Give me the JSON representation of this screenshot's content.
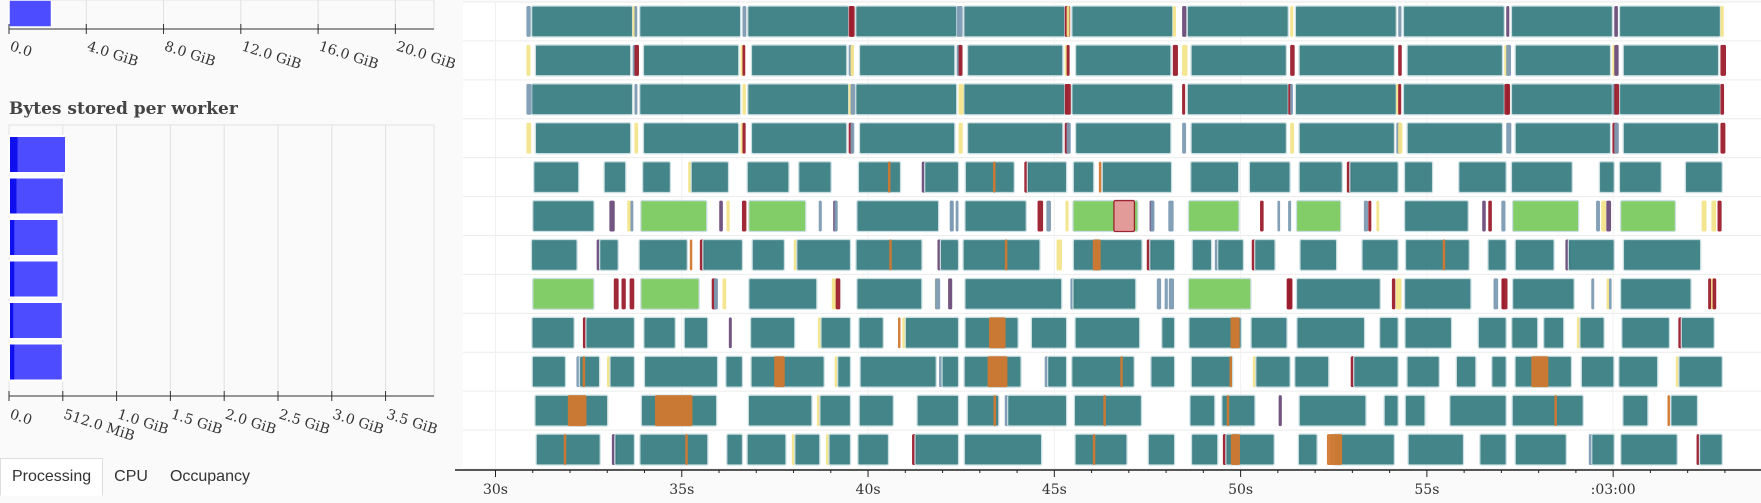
{
  "chart_data": [
    {
      "id": "bytes-top",
      "type": "bar",
      "orientation": "horizontal",
      "title": "",
      "xticks": [
        "0.0",
        "4.0 GiB",
        "8.0 GiB",
        "12.0 GiB",
        "16.0 GiB",
        "20.0 GiB"
      ],
      "xlim": [
        0,
        22
      ],
      "units": "GiB",
      "values": [
        2.2
      ],
      "colors": {
        "bar": "#4d4dff",
        "bar_dark": "#1010ee"
      }
    },
    {
      "id": "bytes-stored-per-worker",
      "type": "bar",
      "orientation": "horizontal",
      "title": "Bytes stored per worker",
      "xticks": [
        "0.0",
        "512.0 MiB",
        "1.0 GiB",
        "1.5 GiB",
        "2.0 GiB",
        "2.5 GiB",
        "3.0 GiB",
        "3.5 GiB"
      ],
      "xlim": [
        0,
        3.95
      ],
      "units": "GiB",
      "values": [
        0.53,
        0.51,
        0.46,
        0.46,
        0.5,
        0.5
      ],
      "inner_values": [
        0.07,
        0.06,
        0.04,
        0.04,
        0.03,
        0.04
      ],
      "colors": {
        "bar": "#4d4dff",
        "bar_dark": "#1010ee"
      }
    },
    {
      "id": "task-stream",
      "type": "timeline",
      "xticks": [
        "30s",
        "35s",
        "40s",
        "45s",
        "50s",
        "55s",
        ":03:00"
      ],
      "xtick_values": [
        30,
        35,
        40,
        45,
        50,
        55,
        60
      ],
      "xlim": [
        29.45,
        63.7
      ],
      "rows": 12,
      "colors": {
        "teal": "#3a7f84",
        "green": "#7ccb5f",
        "red": "#9b1c2c",
        "yellow": "#f3e48a",
        "purple": "#6b4c7a",
        "steel": "#7c9bb3",
        "orange": "#d2782f",
        "pink": "#e8999c"
      }
    }
  ],
  "tabs": [
    "Processing",
    "CPU",
    "Occupancy"
  ]
}
